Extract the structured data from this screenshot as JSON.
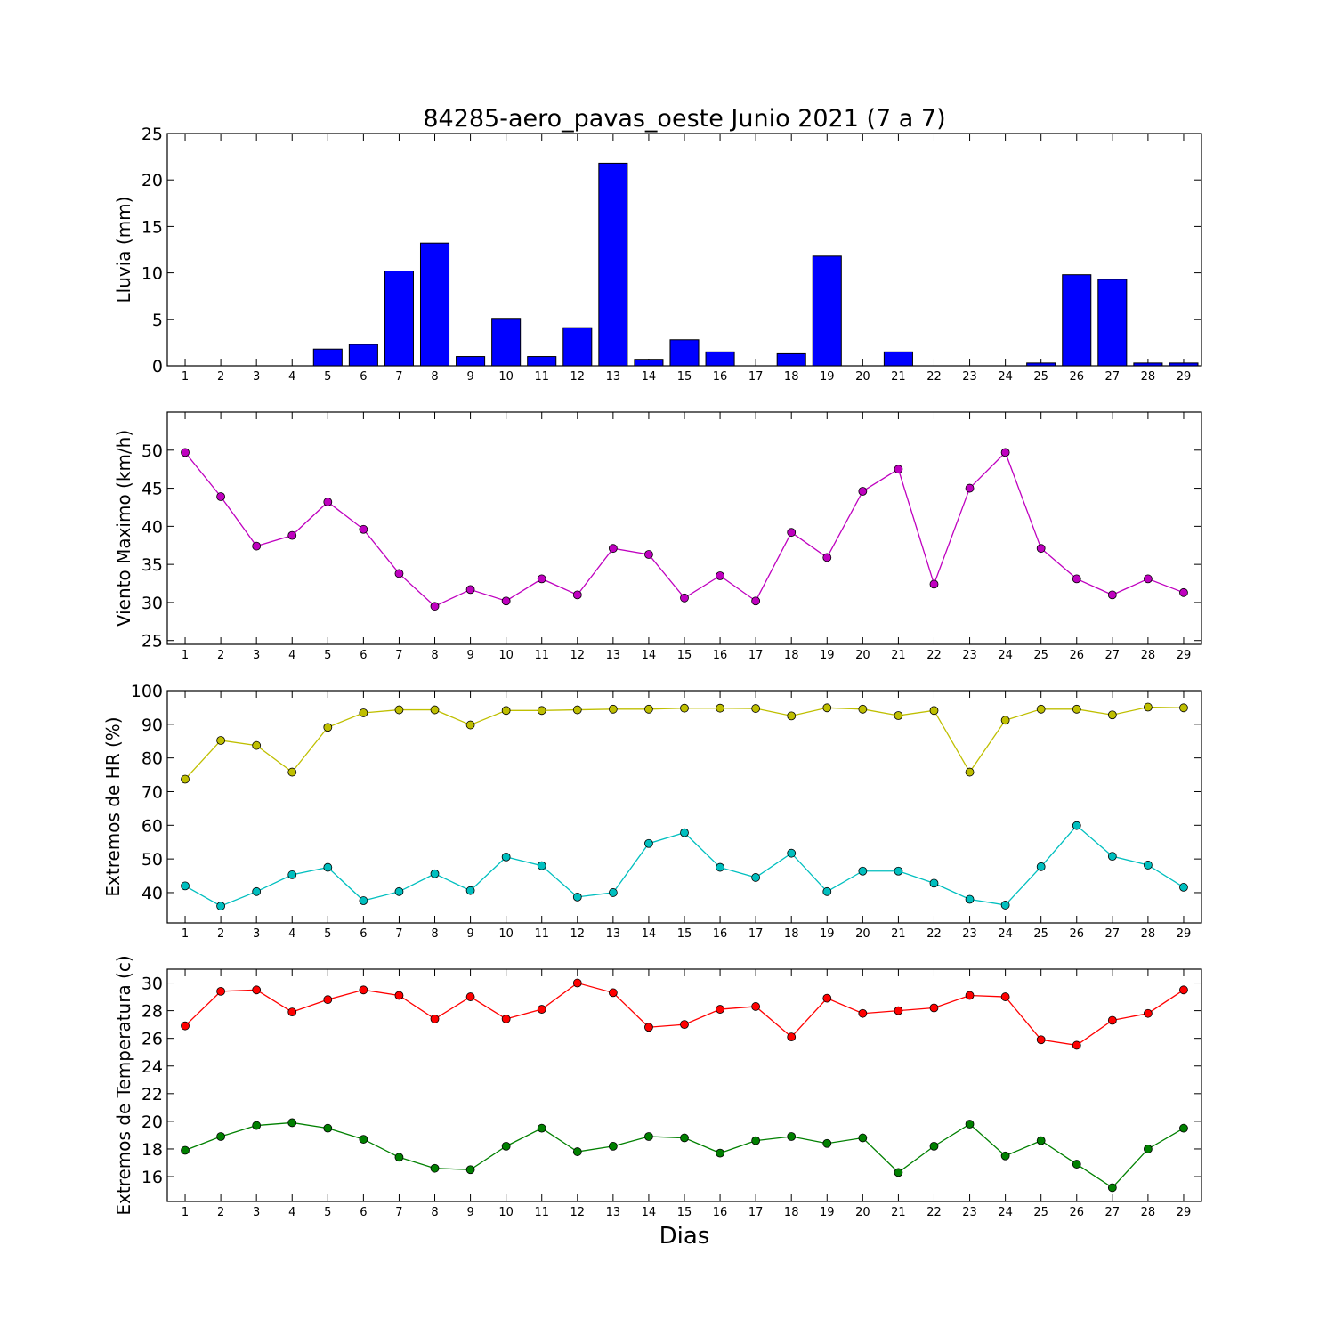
{
  "title": "84285-aero_pavas_oeste Junio 2021  (7 a 7)",
  "xlabel": "Dias",
  "chart_data": [
    {
      "type": "bar",
      "ylabel": "Lluvia (mm)",
      "ylim": [
        0,
        25
      ],
      "yticks": [
        0,
        5,
        10,
        15,
        20,
        25
      ],
      "x": [
        1,
        2,
        3,
        4,
        5,
        6,
        7,
        8,
        9,
        10,
        11,
        12,
        13,
        14,
        15,
        16,
        17,
        18,
        19,
        20,
        21,
        22,
        23,
        24,
        25,
        26,
        27,
        28,
        29
      ],
      "series": [
        {
          "color": "#0000ff",
          "values": [
            0,
            0,
            0,
            0,
            1.8,
            2.3,
            10.2,
            13.2,
            1.0,
            5.1,
            1.0,
            4.1,
            21.8,
            0.7,
            2.8,
            1.5,
            0,
            1.3,
            11.8,
            0,
            1.5,
            0,
            0,
            0,
            0.3,
            9.8,
            9.3,
            0.3,
            0.3
          ]
        }
      ],
      "grid": false
    },
    {
      "type": "line",
      "ylabel": "Viento Maximo (km/h)",
      "ylim": [
        24.5,
        55
      ],
      "yticks": [
        25,
        30,
        35,
        40,
        45,
        50
      ],
      "x": [
        1,
        2,
        3,
        4,
        5,
        6,
        7,
        8,
        9,
        10,
        11,
        12,
        13,
        14,
        15,
        16,
        17,
        18,
        19,
        20,
        21,
        22,
        23,
        24,
        25,
        26,
        27,
        28,
        29
      ],
      "series": [
        {
          "color": "#bf00bf",
          "values": [
            49.7,
            43.9,
            37.4,
            38.8,
            43.2,
            39.6,
            33.8,
            29.5,
            31.7,
            30.2,
            33.1,
            31.0,
            37.1,
            36.3,
            30.6,
            33.5,
            30.2,
            39.2,
            35.9,
            44.6,
            47.5,
            32.4,
            45.0,
            49.7,
            37.1,
            33.1,
            31.0,
            33.1,
            31.3
          ]
        }
      ],
      "grid": false
    },
    {
      "type": "line",
      "ylabel": "Extremos de HR (%)",
      "ylim": [
        31,
        100
      ],
      "yticks": [
        40,
        50,
        60,
        70,
        80,
        90,
        100
      ],
      "x": [
        1,
        2,
        3,
        4,
        5,
        6,
        7,
        8,
        9,
        10,
        11,
        12,
        13,
        14,
        15,
        16,
        17,
        18,
        19,
        20,
        21,
        22,
        23,
        24,
        25,
        26,
        27,
        28,
        29
      ],
      "series": [
        {
          "color": "#bfbf00",
          "values": [
            73.7,
            85.2,
            83.7,
            75.8,
            89.1,
            93.4,
            94.3,
            94.3,
            89.8,
            94.1,
            94.1,
            94.3,
            94.5,
            94.5,
            94.8,
            94.8,
            94.7,
            92.5,
            94.9,
            94.5,
            92.6,
            94.1,
            75.8,
            91.2,
            94.5,
            94.5,
            92.8,
            95.1,
            94.9
          ]
        },
        {
          "color": "#00bfbf",
          "values": [
            42.0,
            36.0,
            40.3,
            45.3,
            47.5,
            37.6,
            40.3,
            45.6,
            40.6,
            50.6,
            48.0,
            38.7,
            40.0,
            54.6,
            57.8,
            47.5,
            44.5,
            51.7,
            40.3,
            46.4,
            46.4,
            42.8,
            38.0,
            36.3,
            47.7,
            59.9,
            50.8,
            48.2,
            41.6
          ]
        }
      ],
      "grid": false
    },
    {
      "type": "line",
      "ylabel": "Extremos de Temperatura (c)",
      "ylim": [
        14.2,
        31
      ],
      "yticks": [
        16,
        18,
        20,
        22,
        24,
        26,
        28,
        30
      ],
      "x": [
        1,
        2,
        3,
        4,
        5,
        6,
        7,
        8,
        9,
        10,
        11,
        12,
        13,
        14,
        15,
        16,
        17,
        18,
        19,
        20,
        21,
        22,
        23,
        24,
        25,
        26,
        27,
        28,
        29
      ],
      "series": [
        {
          "color": "#ff0000",
          "values": [
            26.9,
            29.4,
            29.5,
            27.9,
            28.8,
            29.5,
            29.1,
            27.4,
            29.0,
            27.4,
            28.1,
            30.0,
            29.3,
            26.8,
            27.0,
            28.1,
            28.3,
            26.1,
            28.9,
            27.8,
            28.0,
            28.2,
            29.1,
            29.0,
            25.9,
            25.5,
            27.3,
            27.8,
            29.5
          ]
        },
        {
          "color": "#008000",
          "values": [
            17.9,
            18.9,
            19.7,
            19.9,
            19.5,
            18.7,
            17.4,
            16.6,
            16.5,
            18.2,
            19.5,
            17.8,
            18.2,
            18.9,
            18.8,
            17.7,
            18.6,
            18.9,
            18.4,
            18.8,
            16.3,
            18.2,
            19.8,
            17.5,
            18.6,
            16.9,
            15.2,
            18.0,
            19.5
          ]
        }
      ],
      "grid": false
    }
  ]
}
